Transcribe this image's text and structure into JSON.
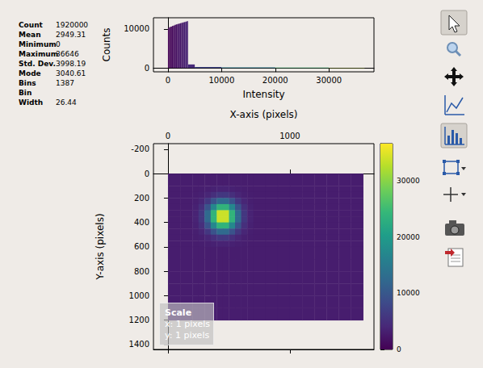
{
  "stats": {
    "rows": [
      [
        "Count",
        1920000
      ],
      [
        "Mean",
        2949.31
      ],
      [
        "Minimum",
        0
      ],
      [
        "Maximum",
        36646
      ],
      [
        "Std. Dev.",
        3998.19
      ],
      [
        "Mode",
        3040.61
      ],
      [
        "Bins",
        1387
      ],
      [
        "Bin Width",
        26.44
      ]
    ]
  },
  "chart_data": [
    {
      "type": "histogram",
      "x_label": "Intensity",
      "y_label": "Counts",
      "bins": [
        0,
        250,
        500,
        750,
        1000,
        1250,
        1500,
        1750,
        2000,
        2250,
        2500,
        2750,
        3000,
        3250,
        3500,
        3750,
        5000,
        10000,
        20000,
        30000,
        36646
      ],
      "counts": [
        10300,
        10500,
        10600,
        10800,
        10900,
        11100,
        11200,
        11300,
        11400,
        11500,
        11600,
        11700,
        11800,
        11900,
        12000,
        900,
        250,
        120,
        80,
        40
      ],
      "xlim": [
        -2700,
        38400
      ],
      "xticks": [
        0,
        10000,
        20000,
        30000
      ],
      "ylim": [
        -1000,
        12900
      ],
      "yticks": [
        0,
        10000
      ]
    },
    {
      "type": "heatmap",
      "x_label": "X-axis (pixels)",
      "y_label": "Y-axis (pixels)",
      "x": [
        0,
        100,
        200,
        250,
        300,
        350,
        400,
        450,
        500,
        550,
        600,
        650,
        700,
        800,
        900,
        1000,
        1100,
        1200,
        1300,
        1400,
        1500,
        1600
      ],
      "y": [
        0,
        100,
        150,
        200,
        250,
        300,
        350,
        400,
        450,
        500,
        550,
        600,
        700,
        800,
        900,
        1000,
        1100,
        1200
      ],
      "cells": [
        [
          2950,
          2950,
          2950,
          2950,
          2950,
          2950,
          2950,
          2950,
          2950,
          2950,
          2950,
          2950,
          2950,
          2950,
          2950,
          2950,
          2950,
          2950,
          2950,
          2950,
          2950
        ],
        [
          2950,
          2950,
          2960,
          3010,
          3140,
          3370,
          3570,
          3570,
          3370,
          3140,
          3010,
          2960,
          2950,
          2950,
          2950,
          2950,
          2950,
          2950,
          2950,
          2950,
          2950
        ],
        [
          2950,
          2950,
          3010,
          3240,
          3870,
          4960,
          5930,
          5930,
          4960,
          3870,
          3240,
          3010,
          2950,
          2950,
          2950,
          2950,
          2950,
          2950,
          2950,
          2950,
          2950
        ],
        [
          2950,
          2950,
          3140,
          3870,
          5910,
          9410,
          12500,
          12500,
          9410,
          5910,
          3870,
          3140,
          2950,
          2950,
          2950,
          2950,
          2950,
          2950,
          2950,
          2950,
          2950
        ],
        [
          2950,
          2950,
          3370,
          4960,
          9410,
          17050,
          23800,
          23800,
          17050,
          9410,
          4960,
          3370,
          2950,
          2950,
          2950,
          2950,
          2950,
          2950,
          2950,
          2950,
          2950
        ],
        [
          2950,
          2950,
          3570,
          5930,
          12500,
          23800,
          33760,
          33760,
          23800,
          12500,
          5930,
          3570,
          2950,
          2950,
          2950,
          2950,
          2950,
          2950,
          2950,
          2950,
          2950
        ],
        [
          2950,
          2950,
          3570,
          5930,
          12500,
          23800,
          33760,
          33760,
          23800,
          12500,
          5930,
          3570,
          2950,
          2950,
          2950,
          2950,
          2950,
          2950,
          2950,
          2950,
          2950
        ],
        [
          2950,
          2950,
          3370,
          4960,
          9410,
          17050,
          23800,
          23800,
          17050,
          9410,
          4960,
          3370,
          2950,
          2950,
          2950,
          2950,
          2950,
          2950,
          2950,
          2950,
          2950
        ],
        [
          2950,
          2950,
          3140,
          3870,
          5910,
          9410,
          12500,
          12500,
          9410,
          5910,
          3870,
          3140,
          2950,
          2950,
          2950,
          2950,
          2950,
          2950,
          2950,
          2950,
          2950
        ],
        [
          2950,
          2950,
          3010,
          3240,
          3870,
          4960,
          5930,
          5930,
          4960,
          3870,
          3240,
          3010,
          2950,
          2950,
          2950,
          2950,
          2950,
          2950,
          2950,
          2950,
          2950
        ],
        [
          2950,
          2950,
          2960,
          3010,
          3140,
          3370,
          3570,
          3570,
          3370,
          3140,
          3010,
          2960,
          2950,
          2950,
          2950,
          2950,
          2950,
          2950,
          2950,
          2950,
          2950
        ],
        [
          2950,
          2950,
          2950,
          2950,
          2950,
          2950,
          2950,
          2950,
          2950,
          2950,
          2950,
          2950,
          2950,
          2950,
          2950,
          2950,
          2950,
          2950,
          2950,
          2950,
          2950
        ],
        [
          2950,
          2950,
          2950,
          2950,
          2950,
          2950,
          2950,
          2950,
          2950,
          2950,
          2950,
          2950,
          2950,
          2950,
          2950,
          2950,
          2950,
          2950,
          2950,
          2950,
          2950
        ],
        [
          2950,
          2950,
          2950,
          2950,
          2950,
          2950,
          2950,
          2950,
          2950,
          2950,
          2950,
          2950,
          2950,
          2950,
          2950,
          2950,
          2950,
          2950,
          2950,
          2950,
          2950
        ],
        [
          2950,
          2950,
          2950,
          2950,
          2950,
          2950,
          2950,
          2950,
          2950,
          2950,
          2950,
          2950,
          2950,
          2950,
          2950,
          2950,
          2950,
          2950,
          2950,
          2950,
          2950
        ],
        [
          2950,
          2950,
          2950,
          2950,
          2950,
          2950,
          2950,
          2950,
          2950,
          2950,
          2950,
          2950,
          2950,
          2950,
          2950,
          2950,
          2950,
          2950,
          2950,
          2950,
          2950
        ],
        [
          2950,
          2950,
          2950,
          2950,
          2950,
          2950,
          2950,
          2950,
          2950,
          2950,
          2950,
          2950,
          2950,
          2950,
          2950,
          2950,
          2950,
          2950,
          2950,
          2950,
          2950
        ]
      ],
      "xlim": [
        -119,
        1689
      ],
      "xticks": [
        0,
        1000
      ],
      "ylim": [
        -245,
        1440
      ],
      "yticks": [
        -200,
        0,
        200,
        400,
        600,
        800,
        1000,
        1200,
        1400
      ],
      "colorbar": {
        "range": [
          0,
          36646
        ],
        "ticks": [
          0,
          10000,
          20000,
          30000
        ]
      }
    }
  ],
  "scale_box": {
    "title": "Scale",
    "lines": [
      "x: 1 pixels",
      "y: 1 pixels"
    ]
  }
}
